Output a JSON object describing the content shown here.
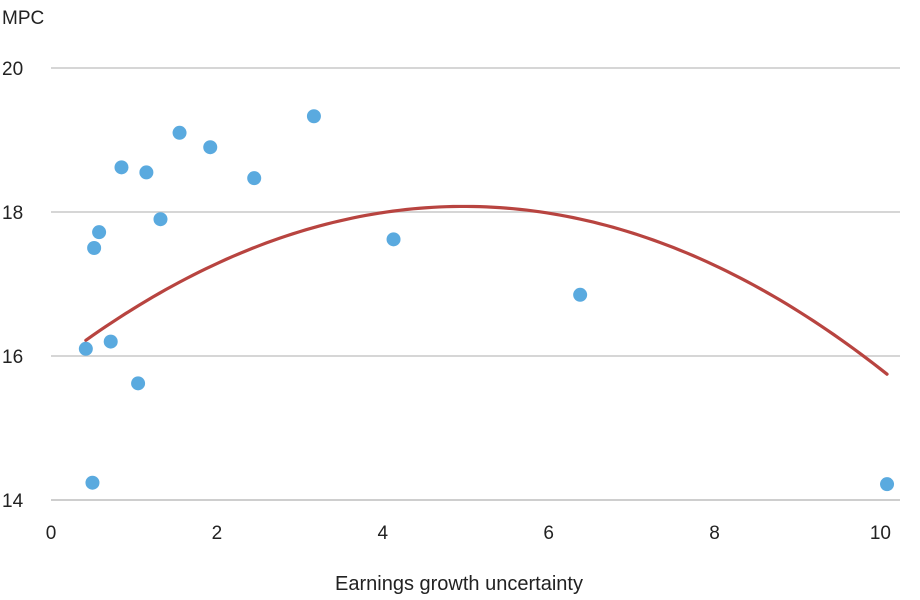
{
  "chart_data": {
    "type": "scatter",
    "title": "",
    "xlabel": "Earnings growth uncertainty",
    "ylabel": "MPC",
    "xlim": [
      0,
      10.2
    ],
    "ylim": [
      14,
      20
    ],
    "xticks": [
      0,
      2,
      4,
      6,
      8,
      10
    ],
    "yticks": [
      14,
      16,
      18,
      20
    ],
    "grid": "horizontal",
    "colors": {
      "points": "#5AAADF",
      "fit": "#B84440",
      "grid": "#C8C8C8"
    },
    "points": {
      "x": [
        0.42,
        0.5,
        0.52,
        0.58,
        0.72,
        0.85,
        1.05,
        1.15,
        1.32,
        1.55,
        1.92,
        2.45,
        3.17,
        4.13,
        6.38,
        10.08
      ],
      "y": [
        16.1,
        14.24,
        17.5,
        17.72,
        16.2,
        18.62,
        15.62,
        18.55,
        17.9,
        19.1,
        18.9,
        18.47,
        19.33,
        17.62,
        16.85,
        14.22
      ]
    },
    "fit": {
      "type": "quadratic",
      "x_range": [
        0.42,
        10.08
      ],
      "a": -0.0895,
      "b": 0.891,
      "c": 15.86
    }
  }
}
